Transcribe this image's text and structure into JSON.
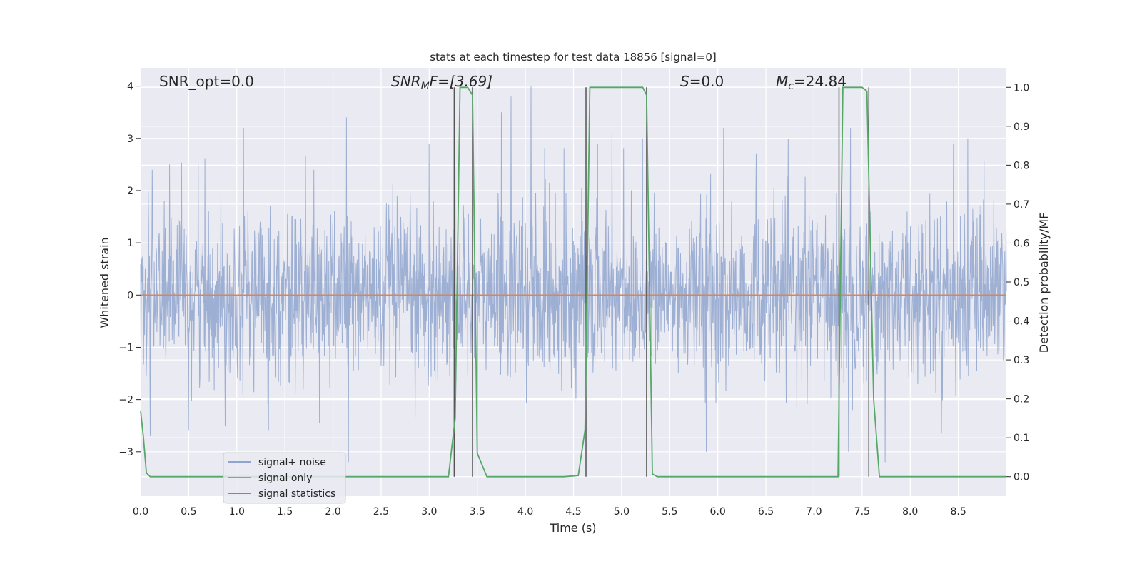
{
  "chart_data": {
    "type": "line",
    "title": "stats at each timestep for test data 18856 [signal=0]",
    "xlabel": "Time (s)",
    "ylabel": "Whitened strain",
    "y2label": "Detection probability/MF",
    "xlim": [
      0.0,
      9.0
    ],
    "ylim": [
      -3.85,
      4.35
    ],
    "y2lim": [
      -0.05,
      1.05
    ],
    "x_ticks": [
      "0.0",
      "0.5",
      "1.0",
      "1.5",
      "2.0",
      "2.5",
      "3.0",
      "3.5",
      "4.0",
      "4.5",
      "5.0",
      "5.5",
      "6.0",
      "6.5",
      "7.0",
      "7.5",
      "8.0",
      "8.5"
    ],
    "y_ticks": [
      "4",
      "3",
      "2",
      "1",
      "0",
      "−1",
      "−2",
      "−3"
    ],
    "y2_ticks": [
      "1.0",
      "0.9",
      "0.8",
      "0.7",
      "0.6",
      "0.5",
      "0.4",
      "0.3",
      "0.2",
      "0.1",
      "0.0"
    ],
    "annotations": {
      "snr_opt": "SNR_opt=0.0",
      "snr_mf_main": "SNR",
      "snr_mf_sub": "M",
      "snr_mf_tail": "F=[3.69]",
      "s_main": "S",
      "s_tail": "=0.0",
      "mc_main": "M",
      "mc_sub": "c",
      "mc_tail": "=24.84"
    },
    "grid": true,
    "legend_position": "lower-left",
    "legend": [
      "signal+ noise",
      "signal only",
      "signal statistics"
    ],
    "colors": {
      "noise": "#8fa4ce",
      "signal": "#dd8452",
      "stats": "#55a868",
      "vlines": "#555555",
      "plot_bg": "#eaeaf2",
      "grid": "#ffffff"
    },
    "series": [
      {
        "name": "signal+ noise",
        "noise_std": 0.78,
        "range": [
          -3.7,
          4.0
        ]
      },
      {
        "name": "signal only",
        "x": [
          0.0,
          9.0
        ],
        "y": [
          0.0,
          0.0
        ]
      },
      {
        "name": "signal statistics",
        "x": [
          0.0,
          0.03,
          0.06,
          0.1,
          0.15,
          3.15,
          3.2,
          3.27,
          3.32,
          3.4,
          3.45,
          3.5,
          3.6,
          4.4,
          4.55,
          4.62,
          4.67,
          5.22,
          5.26,
          5.32,
          5.37,
          6.1,
          6.3,
          7.25,
          7.3,
          7.5,
          7.55,
          7.62,
          7.68,
          7.75,
          9.0
        ],
        "y": [
          0.17,
          0.1,
          0.01,
          0.0,
          0.0,
          0.0,
          0.0,
          0.15,
          1.0,
          1.0,
          0.98,
          0.06,
          0.0,
          0.0,
          0.003,
          0.12,
          1.0,
          1.0,
          0.98,
          0.007,
          0.0,
          0.0,
          0.0,
          0.0,
          1.0,
          1.0,
          0.99,
          0.2,
          0.0,
          0.0,
          0.0
        ]
      }
    ],
    "vlines": [
      3.26,
      3.45,
      4.63,
      5.26,
      7.26,
      7.57
    ],
    "spikes": [
      {
        "x": 0.08,
        "y": 2.0
      },
      {
        "x": 0.1,
        "y": -2.7
      },
      {
        "x": 0.12,
        "y": 2.4
      },
      {
        "x": 0.3,
        "y": 2.5
      },
      {
        "x": 0.5,
        "y": -2.6
      },
      {
        "x": 0.6,
        "y": 2.5
      },
      {
        "x": 0.88,
        "y": -2.5
      },
      {
        "x": 1.07,
        "y": 3.2
      },
      {
        "x": 1.33,
        "y": -2.6
      },
      {
        "x": 1.8,
        "y": 2.4
      },
      {
        "x": 2.14,
        "y": 3.4
      },
      {
        "x": 2.16,
        "y": -3.2
      },
      {
        "x": 3.0,
        "y": 2.9
      },
      {
        "x": 3.5,
        "y": -2.9
      },
      {
        "x": 3.75,
        "y": 3.5
      },
      {
        "x": 3.85,
        "y": 3.8
      },
      {
        "x": 4.06,
        "y": 4.0
      },
      {
        "x": 4.2,
        "y": 2.8
      },
      {
        "x": 4.4,
        "y": 2.8
      },
      {
        "x": 4.75,
        "y": 2.9
      },
      {
        "x": 4.9,
        "y": 3.1
      },
      {
        "x": 5.02,
        "y": 2.8
      },
      {
        "x": 5.22,
        "y": 3.0
      },
      {
        "x": 5.88,
        "y": -3.0
      },
      {
        "x": 6.06,
        "y": 3.2
      },
      {
        "x": 6.4,
        "y": 2.7
      },
      {
        "x": 7.38,
        "y": 3.2
      },
      {
        "x": 7.36,
        "y": -3.0
      },
      {
        "x": 7.74,
        "y": -3.2
      },
      {
        "x": 8.6,
        "y": 3.0
      },
      {
        "x": 8.45,
        "y": 2.9
      }
    ]
  }
}
